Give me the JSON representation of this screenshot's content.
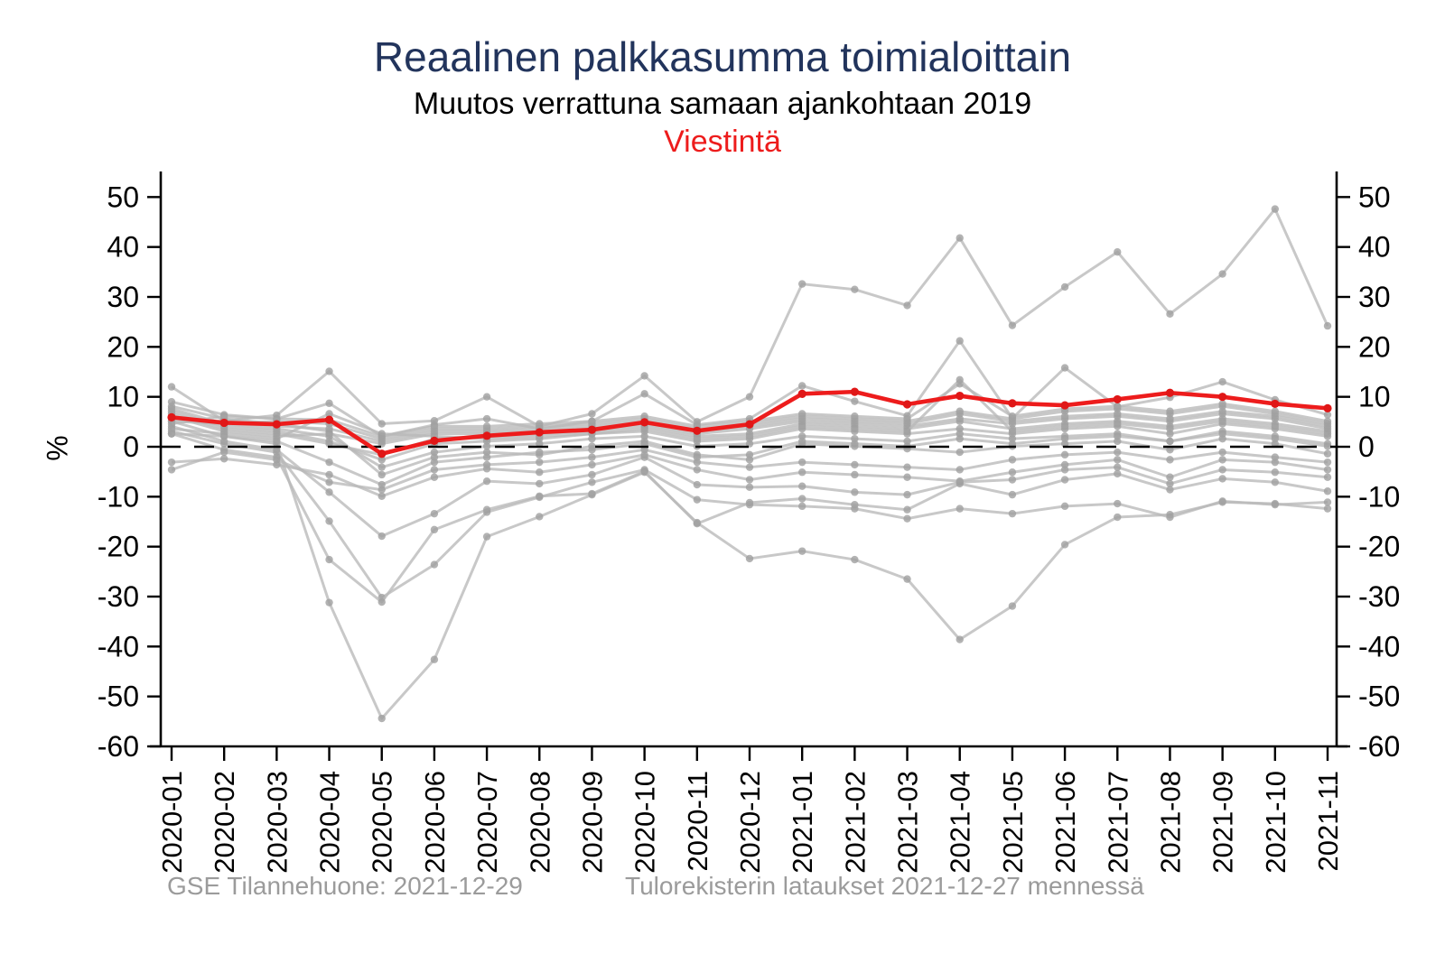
{
  "title": "Reaalinen palkkasumma toimialoittain",
  "subtitle": "Muutos verrattuna samaan ajankohtaan 2019",
  "highlight_label": "Viestintä",
  "ylabel": "%",
  "footer": {
    "left": "GSE Tilannehuone: 2021-12-29",
    "right": "Tulorekisterin lataukset 2021-12-27 mennessä"
  },
  "colors": {
    "title": "#22345C",
    "subtitle": "#000000",
    "highlight": "#ED1C1C",
    "highlight_marker": "#E01717",
    "gray_line": "#B9B9B9",
    "gray_marker": "#A0A0A0",
    "axis": "#000000",
    "zero_line": "#000000",
    "footer_text": "#9B9B9B"
  },
  "chart_data": {
    "type": "line",
    "title": "Reaalinen palkkasumma toimialoittain",
    "subtitle": "Muutos verrattuna samaan ajankohtaan 2019",
    "highlighted": "Viestintä",
    "xlabel": "",
    "ylabel": "%",
    "ylim": [
      -60,
      55
    ],
    "yticks": [
      50,
      40,
      30,
      20,
      10,
      0,
      -10,
      -20,
      -30,
      -40,
      -50,
      -60
    ],
    "grid": false,
    "zero_reference_line": "dashed",
    "legend": "none",
    "categories": [
      "2020-01",
      "2020-02",
      "2020-03",
      "2020-04",
      "2020-05",
      "2020-06",
      "2020-07",
      "2020-08",
      "2020-09",
      "2020-10",
      "2020-11",
      "2020-12",
      "2021-01",
      "2021-02",
      "2021-03",
      "2021-04",
      "2021-05",
      "2021-06",
      "2021-07",
      "2021-08",
      "2021-09",
      "2021-10",
      "2021-11"
    ],
    "highlight_series": {
      "name": "Viestintä",
      "values": [
        5.9,
        4.8,
        4.5,
        5.4,
        -1.4,
        1.2,
        2.2,
        2.9,
        3.4,
        4.9,
        3.2,
        4.5,
        10.6,
        11.0,
        8.5,
        10.2,
        8.7,
        8.3,
        9.5,
        10.8,
        10.0,
        8.6,
        7.7
      ]
    },
    "series": [
      {
        "name": "series-01",
        "values": [
          12.0,
          5.2,
          6.3,
          15.1,
          4.6,
          5.2,
          10.0,
          4.1,
          6.6,
          14.2,
          5.0,
          10.0,
          32.6,
          31.5,
          28.3,
          41.8,
          24.3,
          32.0,
          39.0,
          26.6,
          34.6,
          47.6,
          24.2
        ]
      },
      {
        "name": "series-02",
        "values": [
          9.0,
          6.4,
          5.6,
          8.7,
          2.1,
          4.4,
          5.6,
          3.6,
          5.1,
          10.6,
          4.4,
          5.6,
          12.2,
          9.1,
          6.2,
          21.2,
          5.7,
          15.8,
          8.0,
          9.9,
          13.0,
          9.4,
          6.4
        ]
      },
      {
        "name": "series-03",
        "values": [
          5.1,
          2.1,
          0.6,
          -31.2,
          -54.4,
          -42.6,
          -18.0,
          -14.0,
          -9.6,
          -5.1,
          -15.2,
          -22.4,
          -20.9,
          -22.6,
          -26.5,
          -38.6,
          -31.9,
          -19.6,
          -14.1,
          -13.6,
          -11.1,
          -11.4,
          -12.4
        ]
      },
      {
        "name": "series-04",
        "values": [
          3.1,
          0.6,
          -1.1,
          -14.9,
          -30.2,
          -23.6,
          -13.1,
          -10.1,
          -7.1,
          -4.6,
          -10.6,
          -11.6,
          -11.9,
          -12.4,
          -14.4,
          -12.4,
          -13.4,
          -11.9,
          -11.4,
          -14.1,
          -10.9,
          -11.6,
          -11.1
        ]
      },
      {
        "name": "series-05",
        "values": [
          2.6,
          -0.6,
          -2.1,
          -22.6,
          -31.1,
          -16.6,
          -12.6,
          -9.9,
          -9.4,
          -4.9,
          -15.4,
          -11.2,
          -10.4,
          -11.6,
          -12.6,
          -7.4,
          -9.6,
          -6.6,
          -5.4,
          -8.6,
          -6.4,
          -7.1,
          -8.9
        ]
      },
      {
        "name": "series-06",
        "values": [
          4.1,
          1.1,
          -0.6,
          -9.1,
          -17.9,
          -13.4,
          -6.9,
          -7.4,
          -5.6,
          -2.1,
          -7.6,
          -8.1,
          -7.9,
          -9.1,
          -9.6,
          -7.1,
          -6.6,
          -4.6,
          -4.1,
          -7.4,
          -4.6,
          -5.1,
          -6.1
        ]
      },
      {
        "name": "series-07",
        "values": [
          -3.1,
          -2.4,
          -3.6,
          -5.6,
          -9.9,
          -6.1,
          -4.4,
          -5.1,
          -3.6,
          -1.6,
          -4.6,
          -6.6,
          -5.1,
          -5.6,
          -6.1,
          -6.9,
          -5.1,
          -3.6,
          -2.6,
          -6.1,
          -2.6,
          -3.1,
          -4.6
        ]
      },
      {
        "name": "series-08",
        "values": [
          -4.6,
          -1.1,
          -2.6,
          -7.1,
          -8.6,
          -4.6,
          -3.6,
          -3.1,
          -2.1,
          -0.6,
          -3.1,
          -4.1,
          -3.1,
          -3.6,
          -4.1,
          -4.6,
          -2.6,
          -1.6,
          -1.1,
          -2.6,
          -1.1,
          -2.1,
          -3.1
        ]
      },
      {
        "name": "series-09",
        "values": [
          8.1,
          5.6,
          4.6,
          3.1,
          -5.6,
          -2.1,
          -1.1,
          -1.6,
          0.1,
          1.1,
          -1.6,
          -2.6,
          0.6,
          0.1,
          -0.4,
          -1.1,
          0.1,
          0.6,
          1.1,
          -0.6,
          1.6,
          0.6,
          -1.4
        ]
      },
      {
        "name": "series-10",
        "values": [
          7.6,
          4.6,
          3.6,
          2.1,
          -4.1,
          -1.1,
          0.1,
          0.6,
          1.6,
          2.1,
          0.1,
          0.6,
          2.1,
          1.6,
          1.1,
          2.6,
          1.6,
          2.1,
          2.6,
          1.1,
          3.1,
          2.1,
          0.6
        ]
      },
      {
        "name": "series-11",
        "values": [
          7.1,
          4.1,
          3.1,
          1.1,
          -2.6,
          0.6,
          1.1,
          1.6,
          2.6,
          3.1,
          1.1,
          1.6,
          3.6,
          3.1,
          2.6,
          3.6,
          2.6,
          3.6,
          4.1,
          2.6,
          4.6,
          3.6,
          2.1
        ]
      },
      {
        "name": "series-12",
        "values": [
          6.6,
          3.6,
          2.6,
          0.6,
          -1.6,
          1.6,
          2.1,
          2.6,
          3.1,
          4.1,
          2.1,
          2.6,
          4.6,
          4.1,
          3.6,
          5.1,
          3.6,
          4.6,
          5.1,
          4.1,
          5.6,
          4.6,
          3.1
        ]
      },
      {
        "name": "series-13",
        "values": [
          6.1,
          3.1,
          2.1,
          2.6,
          0.6,
          2.6,
          2.6,
          3.1,
          3.6,
          4.6,
          2.6,
          3.6,
          5.1,
          4.6,
          4.1,
          5.6,
          4.6,
          5.6,
          6.1,
          5.1,
          6.6,
          5.6,
          3.6
        ]
      },
      {
        "name": "series-14",
        "values": [
          5.6,
          5.1,
          4.1,
          3.6,
          1.1,
          3.1,
          3.1,
          3.6,
          4.1,
          5.1,
          3.1,
          4.1,
          5.6,
          5.1,
          4.6,
          6.6,
          5.1,
          6.1,
          6.6,
          5.6,
          7.1,
          6.1,
          4.1
        ]
      },
      {
        "name": "series-15",
        "values": [
          5.1,
          4.6,
          5.1,
          4.6,
          1.6,
          3.6,
          3.6,
          4.1,
          4.6,
          5.6,
          3.6,
          4.6,
          6.1,
          5.6,
          5.1,
          7.1,
          5.6,
          7.1,
          7.6,
          6.6,
          8.1,
          6.6,
          4.6
        ]
      },
      {
        "name": "series-16",
        "values": [
          4.6,
          6.1,
          5.6,
          5.4,
          2.1,
          4.1,
          4.1,
          4.6,
          5.1,
          6.1,
          4.1,
          5.1,
          6.6,
          6.1,
          5.6,
          12.6,
          6.1,
          7.6,
          8.1,
          7.1,
          8.6,
          7.1,
          5.1
        ]
      },
      {
        "name": "series-17",
        "values": [
          3.6,
          2.6,
          1.6,
          6.6,
          2.6,
          2.1,
          1.6,
          2.1,
          2.6,
          3.6,
          1.6,
          2.1,
          4.1,
          3.6,
          3.1,
          13.4,
          3.1,
          4.1,
          4.6,
          3.6,
          5.1,
          4.1,
          2.6
        ]
      },
      {
        "name": "series-18",
        "values": [
          2.6,
          2.1,
          1.1,
          -3.1,
          -7.6,
          -3.1,
          -2.1,
          -1.1,
          -0.6,
          0.6,
          -2.1,
          -1.6,
          1.1,
          0.6,
          0.1,
          1.6,
          0.6,
          1.6,
          2.1,
          1.1,
          2.6,
          1.6,
          0.1
        ]
      }
    ]
  }
}
